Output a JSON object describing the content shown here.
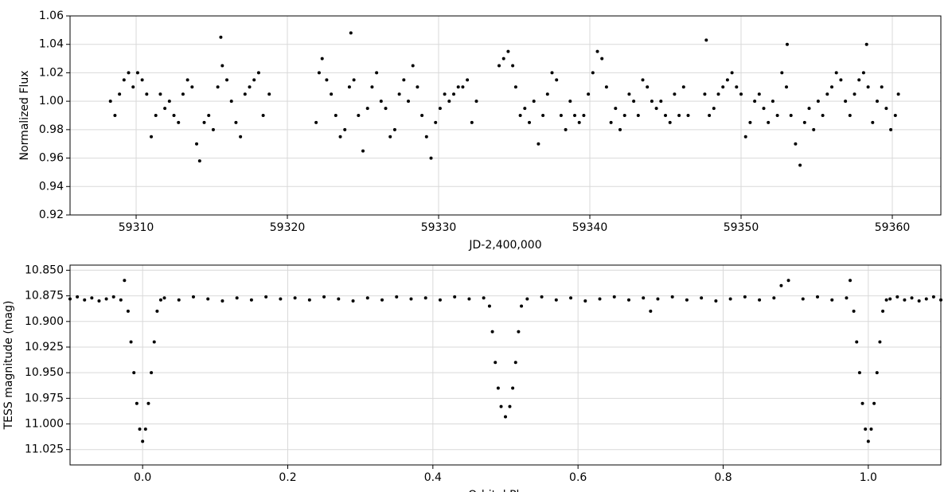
{
  "chart_data": [
    {
      "type": "scatter",
      "xlabel": "JD-2,400,000",
      "ylabel": "Normalized Flux",
      "color": "#000000",
      "grid": true,
      "xlim": [
        59305.63,
        59363.21
      ],
      "ylim": [
        0.92,
        1.06
      ],
      "xticks": [
        59310,
        59320,
        59330,
        59340,
        59350,
        59360
      ],
      "yticks": [
        0.92,
        0.94,
        0.96,
        0.98,
        {
          "value": 1,
          "label": "1.00"
        },
        1.02,
        1.04,
        1.06
      ],
      "x": [
        59308.3,
        59308.6,
        59308.9,
        59309.2,
        59309.5,
        59309.8,
        59310.1,
        59310.4,
        59310.7,
        59311.0,
        59311.3,
        59311.6,
        59311.9,
        59312.2,
        59312.5,
        59312.8,
        59313.1,
        59313.4,
        59313.7,
        59314.0,
        59314.2,
        59314.5,
        59314.8,
        59315.1,
        59315.4,
        59315.6,
        59315.7,
        59316.0,
        59316.3,
        59316.6,
        59316.9,
        59317.2,
        59317.5,
        59317.8,
        59318.1,
        59318.4,
        59318.8,
        59321.9,
        59322.1,
        59322.3,
        59322.6,
        59322.9,
        59323.2,
        59323.5,
        59323.8,
        59324.1,
        59324.2,
        59324.4,
        59324.7,
        59325.0,
        59325.3,
        59325.6,
        59325.9,
        59326.2,
        59326.5,
        59326.8,
        59327.1,
        59327.4,
        59327.7,
        59328.0,
        59328.3,
        59328.6,
        59328.9,
        59329.2,
        59329.5,
        59329.8,
        59330.1,
        59330.4,
        59330.7,
        59331.0,
        59331.3,
        59331.6,
        59331.9,
        59332.2,
        59332.5,
        59334.0,
        59334.3,
        59334.6,
        59334.9,
        59335.1,
        59335.4,
        59335.7,
        59336.0,
        59336.3,
        59336.6,
        59336.9,
        59337.2,
        59337.5,
        59337.8,
        59338.1,
        59338.4,
        59338.7,
        59339.0,
        59339.3,
        59339.6,
        59339.9,
        59340.2,
        59340.5,
        59340.8,
        59341.1,
        59341.4,
        59341.7,
        59342.0,
        59342.3,
        59342.6,
        59342.9,
        59343.2,
        59343.5,
        59343.8,
        59344.1,
        59344.4,
        59344.7,
        59345.0,
        59345.3,
        59345.6,
        59345.9,
        59346.2,
        59346.5,
        59347.6,
        59347.7,
        59347.9,
        59348.2,
        59348.5,
        59348.8,
        59349.1,
        59349.4,
        59349.7,
        59350.0,
        59350.3,
        59350.6,
        59350.9,
        59351.2,
        59351.5,
        59351.8,
        59352.1,
        59352.4,
        59352.7,
        59353.0,
        59353.05,
        59353.3,
        59353.6,
        59353.9,
        59354.2,
        59354.5,
        59354.8,
        59355.1,
        59355.4,
        59355.7,
        59356.0,
        59356.3,
        59356.6,
        59356.9,
        59357.2,
        59357.5,
        59357.8,
        59358.1,
        59358.3,
        59358.4,
        59358.7,
        59359.0,
        59359.3,
        59359.6,
        59359.9,
        59360.2,
        59360.4
      ],
      "values": [
        1.0,
        0.99,
        1.005,
        1.015,
        1.02,
        1.01,
        1.02,
        1.015,
        1.005,
        0.975,
        0.99,
        1.005,
        0.995,
        1.0,
        0.99,
        0.985,
        1.005,
        1.015,
        1.01,
        0.97,
        0.958,
        0.985,
        0.99,
        0.98,
        1.01,
        1.045,
        1.025,
        1.015,
        1.0,
        0.985,
        0.975,
        1.005,
        1.01,
        1.015,
        1.02,
        0.99,
        1.005,
        0.985,
        1.02,
        1.03,
        1.015,
        1.005,
        0.99,
        0.975,
        0.98,
        1.01,
        1.048,
        1.015,
        0.99,
        0.965,
        0.995,
        1.01,
        1.02,
        1.0,
        0.995,
        0.975,
        0.98,
        1.005,
        1.015,
        1.0,
        1.025,
        1.01,
        0.99,
        0.975,
        0.96,
        0.985,
        0.995,
        1.005,
        1.0,
        1.005,
        1.01,
        1.01,
        1.015,
        0.985,
        1.0,
        1.025,
        1.03,
        1.035,
        1.025,
        1.01,
        0.99,
        0.995,
        0.985,
        1.0,
        0.97,
        0.99,
        1.005,
        1.02,
        1.015,
        0.99,
        0.98,
        1.0,
        0.99,
        0.985,
        0.99,
        1.005,
        1.02,
        1.035,
        1.03,
        1.01,
        0.985,
        0.995,
        0.98,
        0.99,
        1.005,
        1.0,
        0.99,
        1.015,
        1.01,
        1.0,
        0.995,
        1.0,
        0.99,
        0.985,
        1.005,
        0.99,
        1.01,
        0.99,
        1.005,
        1.043,
        0.99,
        0.995,
        1.005,
        1.01,
        1.015,
        1.02,
        1.01,
        1.005,
        0.975,
        0.985,
        1.0,
        1.005,
        0.995,
        0.985,
        1.0,
        0.99,
        1.02,
        1.01,
        1.04,
        0.99,
        0.97,
        0.955,
        0.985,
        0.995,
        0.98,
        1.0,
        0.99,
        1.005,
        1.01,
        1.02,
        1.015,
        1.0,
        0.99,
        1.005,
        1.015,
        1.02,
        1.04,
        1.01,
        0.985,
        1.0,
        1.01,
        0.995,
        0.98,
        0.99,
        1.005
      ]
    },
    {
      "type": "scatter",
      "xlabel": "Orbital Phase",
      "ylabel": "TESS magnitude (mag)",
      "color": "#000000",
      "grid": true,
      "xlim": [
        -0.1,
        1.1
      ],
      "ylim": [
        11.04,
        10.845
      ],
      "xticks": [
        {
          "value": 0,
          "label": "0.0"
        },
        0.2,
        0.4,
        0.6,
        0.8,
        {
          "value": 1,
          "label": "1.0"
        }
      ],
      "yticks": [
        {
          "value": 10.85,
          "label": "10.850"
        },
        10.875,
        {
          "value": 10.9,
          "label": "10.900"
        },
        10.925,
        {
          "value": 10.95,
          "label": "10.950"
        },
        10.975,
        {
          "value": 11,
          "label": "11.000"
        },
        11.025
      ],
      "x": [
        -0.1,
        -0.09,
        -0.08,
        -0.07,
        -0.06,
        -0.05,
        -0.04,
        -0.03,
        -0.025,
        -0.02,
        -0.016,
        -0.012,
        -0.008,
        -0.004,
        0,
        0.004,
        0.008,
        0.012,
        0.016,
        0.02,
        0.025,
        0.03,
        0.05,
        0.07,
        0.09,
        0.11,
        0.13,
        0.15,
        0.17,
        0.19,
        0.21,
        0.23,
        0.25,
        0.27,
        0.29,
        0.31,
        0.33,
        0.35,
        0.37,
        0.39,
        0.41,
        0.43,
        0.45,
        0.47,
        0.478,
        0.482,
        0.486,
        0.49,
        0.494,
        0.5,
        0.506,
        0.51,
        0.514,
        0.518,
        0.522,
        0.53,
        0.55,
        0.57,
        0.59,
        0.61,
        0.63,
        0.65,
        0.67,
        0.69,
        0.7,
        0.71,
        0.73,
        0.75,
        0.77,
        0.79,
        0.81,
        0.83,
        0.85,
        0.87,
        0.88,
        0.89,
        0.91,
        0.93,
        0.95,
        0.97,
        0.975,
        0.98,
        0.984,
        0.988,
        0.992,
        0.996,
        1.0,
        1.004,
        1.008,
        1.012,
        1.016,
        1.02,
        1.025,
        1.03,
        1.04,
        1.05,
        1.06,
        1.07,
        1.08,
        1.09,
        1.1
      ],
      "values": [
        10.878,
        10.876,
        10.879,
        10.877,
        10.88,
        10.878,
        10.876,
        10.879,
        10.86,
        10.89,
        10.92,
        10.95,
        10.98,
        11.005,
        11.017,
        11.005,
        10.98,
        10.95,
        10.92,
        10.89,
        10.879,
        10.877,
        10.879,
        10.876,
        10.878,
        10.88,
        10.877,
        10.879,
        10.876,
        10.878,
        10.877,
        10.879,
        10.876,
        10.878,
        10.88,
        10.877,
        10.879,
        10.876,
        10.878,
        10.877,
        10.879,
        10.876,
        10.878,
        10.877,
        10.885,
        10.91,
        10.94,
        10.965,
        10.983,
        10.993,
        10.983,
        10.965,
        10.94,
        10.91,
        10.885,
        10.878,
        10.876,
        10.879,
        10.877,
        10.88,
        10.878,
        10.876,
        10.879,
        10.877,
        10.89,
        10.878,
        10.876,
        10.879,
        10.877,
        10.88,
        10.878,
        10.876,
        10.879,
        10.877,
        10.865,
        10.86,
        10.878,
        10.876,
        10.879,
        10.877,
        10.86,
        10.89,
        10.92,
        10.95,
        10.98,
        11.005,
        11.017,
        11.005,
        10.98,
        10.95,
        10.92,
        10.89,
        10.879,
        10.878,
        10.876,
        10.879,
        10.877,
        10.88,
        10.878,
        10.876,
        10.879
      ]
    }
  ]
}
